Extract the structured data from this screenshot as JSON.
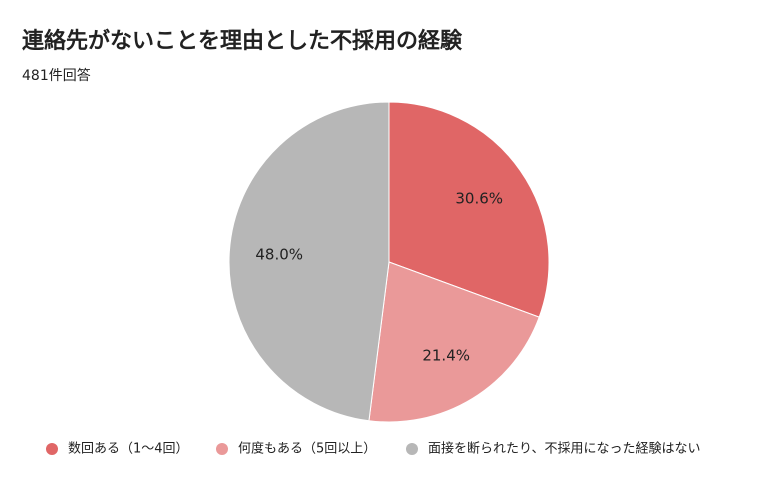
{
  "chart_data": {
    "type": "pie",
    "title": "連絡先がないことを理由とした不採用の経験",
    "subtitle": "481件回答",
    "categories": [
      "数回ある（1～4回）",
      "何度もある（5回以上）",
      "面接を断られたり、不採用になった経験はない"
    ],
    "values": [
      30.6,
      21.4,
      48.0
    ],
    "value_labels": [
      "30.6%",
      "21.4%",
      "48.0%"
    ],
    "colors": [
      "#e06666",
      "#ea9999",
      "#b7b7b7"
    ],
    "legend": "bottom"
  }
}
